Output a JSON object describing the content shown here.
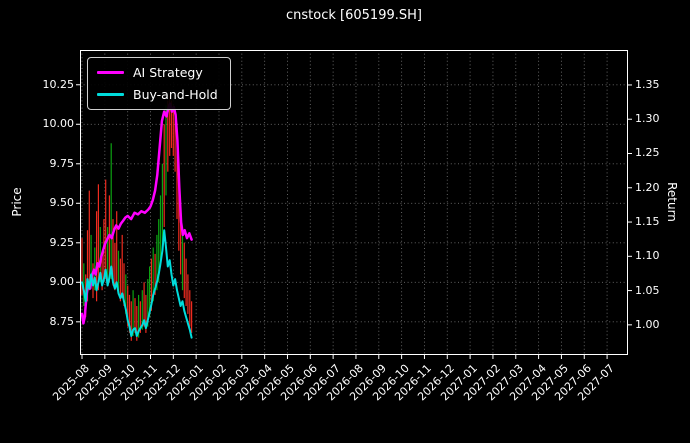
{
  "figure": {
    "background": "#000000",
    "text_color": "#ffffff"
  },
  "chart_data": {
    "type": "line",
    "title": "cnstock [605199.SH]",
    "grid": true,
    "legend_position": "upper left",
    "legend": [
      {
        "label": "AI Strategy",
        "color": "#ff00ff"
      },
      {
        "label": "Buy-and-Hold",
        "color": "#00dcdc"
      }
    ],
    "x_axis": {
      "units": "month (index 0 = 2025-08)",
      "tick_labels": [
        "2025-08",
        "2025-09",
        "2025-10",
        "2025-11",
        "2025-12",
        "2026-01",
        "2026-02",
        "2026-03",
        "2026-04",
        "2026-05",
        "2026-06",
        "2026-07",
        "2026-08",
        "2026-09",
        "2026-10",
        "2026-11",
        "2026-12",
        "2027-01",
        "2027-02",
        "2027-03",
        "2027-04",
        "2027-05",
        "2027-06",
        "2027-07"
      ],
      "lim": [
        -0.09,
        23.92
      ]
    },
    "left_axis": {
      "label": "Price",
      "tick_labels": [
        "8.75",
        "9.00",
        "9.25",
        "9.50",
        "9.75",
        "10.00",
        "10.25"
      ],
      "tick_values": [
        8.75,
        9.0,
        9.25,
        9.5,
        9.75,
        10.0,
        10.25
      ],
      "lim": [
        8.54,
        10.47
      ]
    },
    "right_axis": {
      "label": "Return",
      "tick_labels": [
        "1.00",
        "1.05",
        "1.10",
        "1.15",
        "1.20",
        "1.25",
        "1.30",
        "1.35"
      ],
      "tick_values": [
        1.0,
        1.05,
        1.1,
        1.15,
        1.2,
        1.25,
        1.3,
        1.35
      ],
      "lim": [
        0.956,
        1.401
      ]
    },
    "series": [
      {
        "name": "AI Strategy",
        "color": "#ff00ff",
        "axis": "left",
        "x": [
          0,
          0.06,
          0.12,
          0.2,
          0.28,
          0.36,
          0.44,
          0.52,
          0.6,
          0.68,
          0.76,
          0.84,
          0.92,
          1.0,
          1.1,
          1.2,
          1.3,
          1.4,
          1.5,
          1.6,
          1.7,
          1.8,
          1.9,
          2.0,
          2.15,
          2.3,
          2.45,
          2.6,
          2.75,
          2.9,
          3.0,
          3.1,
          3.2,
          3.3,
          3.4,
          3.5,
          3.6,
          3.7,
          3.78,
          3.86,
          3.94,
          4.02,
          4.1,
          4.18,
          4.26,
          4.34,
          4.42,
          4.5,
          4.6,
          4.7,
          4.8
        ],
        "y": [
          8.8,
          8.74,
          8.78,
          8.92,
          9.0,
          8.96,
          9.04,
          9.08,
          9.05,
          9.12,
          9.1,
          9.16,
          9.2,
          9.24,
          9.27,
          9.3,
          9.28,
          9.33,
          9.36,
          9.34,
          9.37,
          9.39,
          9.41,
          9.42,
          9.4,
          9.44,
          9.43,
          9.45,
          9.44,
          9.46,
          9.48,
          9.52,
          9.58,
          9.68,
          9.85,
          10.02,
          10.08,
          10.05,
          10.1,
          10.13,
          10.08,
          10.11,
          10.06,
          9.9,
          9.6,
          9.38,
          9.3,
          9.33,
          9.28,
          9.31,
          9.27
        ]
      },
      {
        "name": "Buy-and-Hold",
        "color": "#00dcdc",
        "axis": "left",
        "x": [
          0,
          0.08,
          0.16,
          0.24,
          0.32,
          0.4,
          0.48,
          0.56,
          0.64,
          0.72,
          0.8,
          0.88,
          0.96,
          1.04,
          1.12,
          1.2,
          1.28,
          1.36,
          1.44,
          1.52,
          1.6,
          1.68,
          1.76,
          1.84,
          1.92,
          2.0,
          2.08,
          2.16,
          2.24,
          2.32,
          2.4,
          2.48,
          2.56,
          2.64,
          2.72,
          2.8,
          2.88,
          2.96,
          3.04,
          3.12,
          3.2,
          3.28,
          3.36,
          3.44,
          3.52,
          3.6,
          3.68,
          3.76,
          3.84,
          3.92,
          4.0,
          4.08,
          4.16,
          4.24,
          4.32,
          4.4,
          4.48,
          4.56,
          4.64,
          4.72,
          4.8
        ],
        "y": [
          9.0,
          8.95,
          8.88,
          9.02,
          8.96,
          9.05,
          8.98,
          9.03,
          8.95,
          9.0,
          9.06,
          8.98,
          9.02,
          9.08,
          8.98,
          9.03,
          9.1,
          9.0,
          8.96,
          9.0,
          8.93,
          8.9,
          8.93,
          8.88,
          8.83,
          8.76,
          8.72,
          8.66,
          8.7,
          8.71,
          8.66,
          8.69,
          8.71,
          8.73,
          8.76,
          8.71,
          8.76,
          8.81,
          8.86,
          8.92,
          8.96,
          9.0,
          9.05,
          9.12,
          9.2,
          9.33,
          9.22,
          9.1,
          9.14,
          9.05,
          8.98,
          9.02,
          8.95,
          8.9,
          8.85,
          8.88,
          8.82,
          8.78,
          8.74,
          8.7,
          8.65
        ]
      }
    ],
    "price_bars": {
      "description": "high-low price bars, x in months, [x, low, high, up(g)/down(r)]",
      "up_color": "#0ca312",
      "down_color": "#ee2b1f",
      "items": [
        [
          0.0,
          8.92,
          9.28,
          "r"
        ],
        [
          0.08,
          8.85,
          9.12,
          "g"
        ],
        [
          0.16,
          8.78,
          9.05,
          "r"
        ],
        [
          0.24,
          8.88,
          9.33,
          "r"
        ],
        [
          0.32,
          8.95,
          9.58,
          "r"
        ],
        [
          0.4,
          9.0,
          9.3,
          "g"
        ],
        [
          0.48,
          8.9,
          9.12,
          "r"
        ],
        [
          0.56,
          8.95,
          9.22,
          "g"
        ],
        [
          0.64,
          8.88,
          9.45,
          "r"
        ],
        [
          0.72,
          8.95,
          9.62,
          "r"
        ],
        [
          0.8,
          9.0,
          9.35,
          "g"
        ],
        [
          0.88,
          8.95,
          9.2,
          "r"
        ],
        [
          0.96,
          9.0,
          9.4,
          "r"
        ],
        [
          1.04,
          9.02,
          9.65,
          "r"
        ],
        [
          1.12,
          8.98,
          9.35,
          "g"
        ],
        [
          1.2,
          9.0,
          9.55,
          "r"
        ],
        [
          1.28,
          9.02,
          9.88,
          "g"
        ],
        [
          1.36,
          8.98,
          9.4,
          "r"
        ],
        [
          1.44,
          8.95,
          9.25,
          "r"
        ],
        [
          1.52,
          8.98,
          9.45,
          "r"
        ],
        [
          1.6,
          8.92,
          9.2,
          "g"
        ],
        [
          1.68,
          8.88,
          9.15,
          "r"
        ],
        [
          1.76,
          8.9,
          9.3,
          "r"
        ],
        [
          1.84,
          8.85,
          9.12,
          "r"
        ],
        [
          1.92,
          8.8,
          9.05,
          "g"
        ],
        [
          2.0,
          8.72,
          8.98,
          "r"
        ],
        [
          2.08,
          8.68,
          8.92,
          "r"
        ],
        [
          2.16,
          8.63,
          8.88,
          "r"
        ],
        [
          2.24,
          8.66,
          8.95,
          "g"
        ],
        [
          2.32,
          8.68,
          8.9,
          "r"
        ],
        [
          2.4,
          8.63,
          8.85,
          "r"
        ],
        [
          2.48,
          8.65,
          8.92,
          "g"
        ],
        [
          2.56,
          8.68,
          8.88,
          "r"
        ],
        [
          2.64,
          8.7,
          8.95,
          "g"
        ],
        [
          2.72,
          8.72,
          9.0,
          "r"
        ],
        [
          2.8,
          8.68,
          8.92,
          "r"
        ],
        [
          2.88,
          8.72,
          9.02,
          "g"
        ],
        [
          2.96,
          8.78,
          9.1,
          "g"
        ],
        [
          3.04,
          8.82,
          9.15,
          "r"
        ],
        [
          3.12,
          8.88,
          9.22,
          "g"
        ],
        [
          3.2,
          8.92,
          9.18,
          "r"
        ],
        [
          3.28,
          8.95,
          9.3,
          "g"
        ],
        [
          3.36,
          9.0,
          9.4,
          "g"
        ],
        [
          3.44,
          9.1,
          9.55,
          "g"
        ],
        [
          3.52,
          9.2,
          9.75,
          "g"
        ],
        [
          3.6,
          9.35,
          10.0,
          "r"
        ],
        [
          3.68,
          9.55,
          10.12,
          "g"
        ],
        [
          3.76,
          9.7,
          10.15,
          "r"
        ],
        [
          3.84,
          9.8,
          10.18,
          "r"
        ],
        [
          3.92,
          9.85,
          10.15,
          "r"
        ],
        [
          4.0,
          9.8,
          10.12,
          "r"
        ],
        [
          4.08,
          9.7,
          10.05,
          "r"
        ],
        [
          4.16,
          9.4,
          9.95,
          "r"
        ],
        [
          4.24,
          9.2,
          9.7,
          "r"
        ],
        [
          4.32,
          9.05,
          9.45,
          "r"
        ],
        [
          4.4,
          8.95,
          9.3,
          "g"
        ],
        [
          4.48,
          8.9,
          9.25,
          "r"
        ],
        [
          4.56,
          8.85,
          9.15,
          "r"
        ],
        [
          4.64,
          8.8,
          9.05,
          "r"
        ],
        [
          4.72,
          8.72,
          8.95,
          "r"
        ],
        [
          4.8,
          8.68,
          8.88,
          "r"
        ]
      ]
    }
  }
}
